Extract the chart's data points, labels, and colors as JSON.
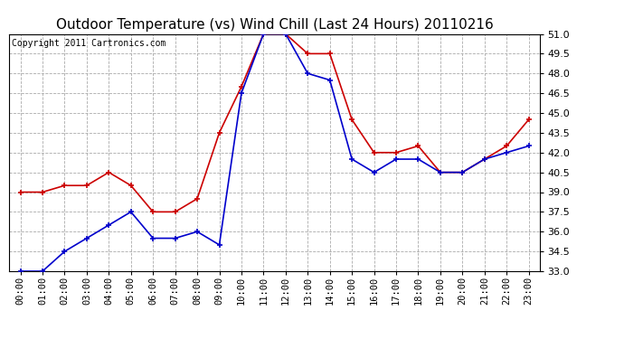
{
  "title": "Outdoor Temperature (vs) Wind Chill (Last 24 Hours) 20110216",
  "copyright": "Copyright 2011 Cartronics.com",
  "hours": [
    "00:00",
    "01:00",
    "02:00",
    "03:00",
    "04:00",
    "05:00",
    "06:00",
    "07:00",
    "08:00",
    "09:00",
    "10:00",
    "11:00",
    "12:00",
    "13:00",
    "14:00",
    "15:00",
    "16:00",
    "17:00",
    "18:00",
    "19:00",
    "20:00",
    "21:00",
    "22:00",
    "23:00"
  ],
  "temp": [
    39.0,
    39.0,
    39.5,
    39.5,
    40.5,
    39.5,
    37.5,
    37.5,
    38.5,
    43.5,
    47.0,
    51.0,
    51.0,
    49.5,
    49.5,
    44.5,
    42.0,
    42.0,
    42.5,
    40.5,
    40.5,
    41.5,
    42.5,
    44.5
  ],
  "windchill": [
    33.0,
    33.0,
    34.5,
    35.5,
    36.5,
    37.5,
    35.5,
    35.5,
    36.0,
    35.0,
    46.5,
    51.0,
    51.0,
    48.0,
    47.5,
    41.5,
    40.5,
    41.5,
    41.5,
    40.5,
    40.5,
    41.5,
    42.0,
    42.5
  ],
  "ylim": [
    33.0,
    51.0
  ],
  "yticks": [
    33.0,
    34.5,
    36.0,
    37.5,
    39.0,
    40.5,
    42.0,
    43.5,
    45.0,
    46.5,
    48.0,
    49.5,
    51.0
  ],
  "temp_color": "#cc0000",
  "windchill_color": "#0000cc",
  "bg_color": "#ffffff",
  "grid_color": "#aaaaaa",
  "title_fontsize": 11,
  "copyright_fontsize": 7,
  "tick_fontsize": 7.5,
  "ytick_fontsize": 8
}
